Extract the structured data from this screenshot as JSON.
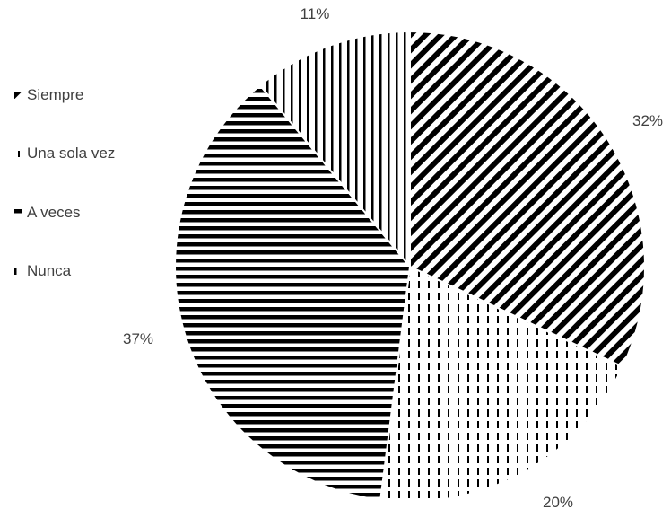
{
  "chart_data": {
    "type": "pie",
    "title": "",
    "categories": [
      "Siempre",
      "Una sola vez",
      "A veces",
      "Nunca"
    ],
    "values": [
      32,
      20,
      37,
      11
    ],
    "data_labels": [
      "32%",
      "20%",
      "37%",
      "11%"
    ],
    "patterns": [
      "diagonal-stripes",
      "dashed-vertical-dots",
      "horizontal-stripes",
      "vertical-stripes"
    ],
    "legend": {
      "placement": "left",
      "entries": [
        "Siempre",
        "Una sola vez",
        "A veces",
        "Nunca"
      ]
    },
    "colors": {
      "ink": "#000000",
      "background": "#ffffff",
      "text": "#404040"
    }
  }
}
